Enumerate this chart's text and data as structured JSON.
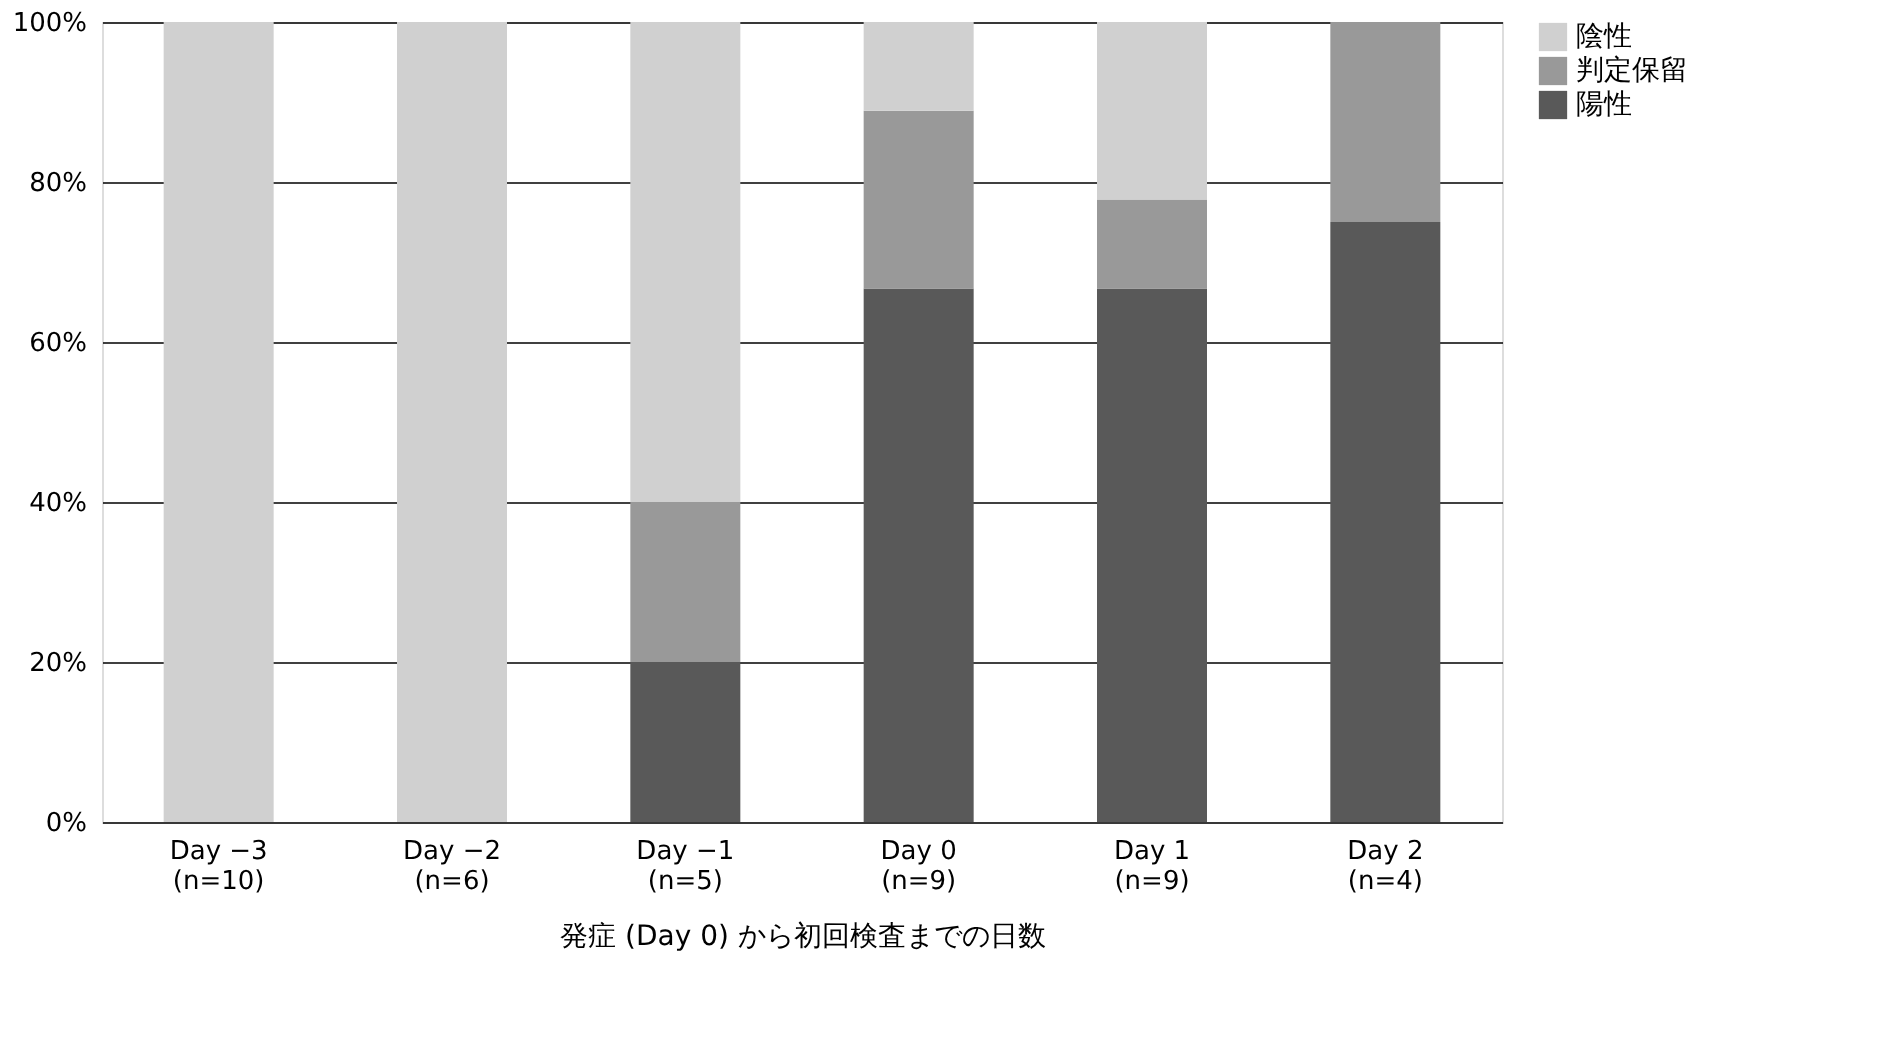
{
  "chart_data": {
    "type": "bar",
    "stacked": true,
    "xlabel": "発症 (Day 0) から初回検査までの日数",
    "categories": [
      "Day −3\n(n=10)",
      "Day −2\n(n=6)",
      "Day −1\n(n=5)",
      "Day 0\n(n=9)",
      "Day 1\n(n=9)",
      "Day 2\n(n=4)"
    ],
    "series": [
      {
        "name": "陽性",
        "color": "#595959",
        "values": [
          0,
          0,
          20,
          66.7,
          66.7,
          75
        ]
      },
      {
        "name": "判定保留",
        "color": "#999999",
        "values": [
          0,
          0,
          20,
          22.2,
          11.1,
          25
        ]
      },
      {
        "name": "陰性",
        "color": "#d0d0d0",
        "values": [
          100,
          100,
          60,
          11.1,
          22.2,
          0
        ]
      }
    ],
    "ylim": [
      0,
      100
    ],
    "yticks": [
      {
        "value": 0,
        "label": "0%"
      },
      {
        "value": 20,
        "label": "20%"
      },
      {
        "value": 40,
        "label": "40%"
      },
      {
        "value": 60,
        "label": "60%"
      },
      {
        "value": 80,
        "label": "80%"
      },
      {
        "value": 100,
        "label": "100%"
      }
    ],
    "grid": "y",
    "legend": "right"
  }
}
